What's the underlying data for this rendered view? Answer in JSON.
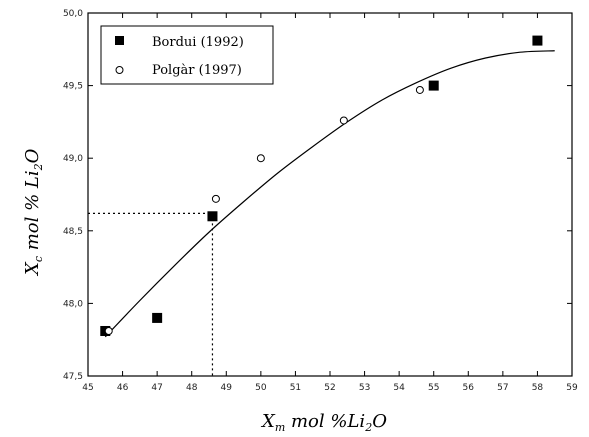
{
  "chart_data": {
    "type": "scatter",
    "xlim": [
      45,
      59
    ],
    "ylim": [
      47.5,
      50.0
    ],
    "x_ticks": [
      "45",
      "46",
      "47",
      "48",
      "49",
      "50",
      "51",
      "52",
      "53",
      "54",
      "55",
      "56",
      "57",
      "58",
      "59"
    ],
    "y_ticks": [
      "47,5",
      "48,0",
      "48,5",
      "49,0",
      "49,5",
      "50,0"
    ],
    "y_tick_values": [
      47.5,
      48.0,
      48.5,
      49.0,
      49.5,
      50.0
    ],
    "xlabel_main": "X",
    "xlabel_sub": "m",
    "xlabel_rest": " mol %Li",
    "xlabel_sub2": "2",
    "xlabel_end": "O",
    "ylabel_main": "X",
    "ylabel_sub": "c",
    "ylabel_rest": " mol % Li",
    "ylabel_sub2": "2",
    "ylabel_end": "O",
    "legend_position": "top-left",
    "series": [
      {
        "name": "Bordui (1992)",
        "marker": "filled-square",
        "color": "#000000",
        "points": [
          [
            45.5,
            47.81
          ],
          [
            47.0,
            47.9
          ],
          [
            48.6,
            48.6
          ],
          [
            55.0,
            49.5
          ],
          [
            58.0,
            49.81
          ]
        ]
      },
      {
        "name": "Polgàr (1997)",
        "marker": "open-circle",
        "color": "#000000",
        "points": [
          [
            45.6,
            47.81
          ],
          [
            48.7,
            48.72
          ],
          [
            50.0,
            49.0
          ],
          [
            52.4,
            49.26
          ],
          [
            54.6,
            49.47
          ]
        ]
      }
    ],
    "fit_curve": [
      [
        45.5,
        47.77
      ],
      [
        46.5,
        48.02
      ],
      [
        47.5,
        48.26
      ],
      [
        48.5,
        48.49
      ],
      [
        49.5,
        48.7
      ],
      [
        50.5,
        48.9
      ],
      [
        51.5,
        49.08
      ],
      [
        52.5,
        49.25
      ],
      [
        53.5,
        49.4
      ],
      [
        54.5,
        49.52
      ],
      [
        55.5,
        49.62
      ],
      [
        56.5,
        49.69
      ],
      [
        57.5,
        49.73
      ],
      [
        58.5,
        49.74
      ]
    ],
    "guide_point": [
      48.6,
      48.62
    ]
  }
}
